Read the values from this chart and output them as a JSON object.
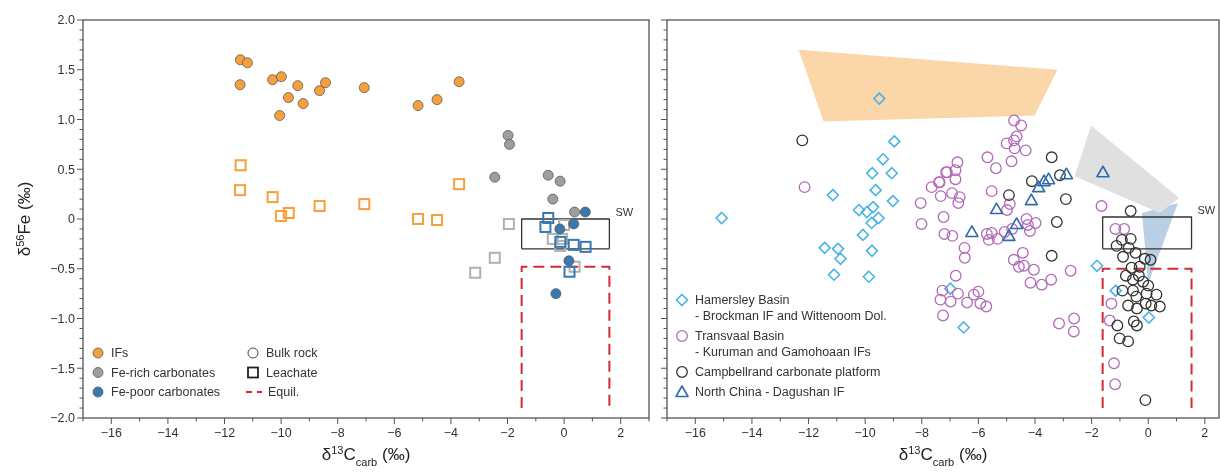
{
  "chart_data": [
    {
      "type": "scatter",
      "xlabel": "δ$^{13}$C$_{carb}$ (‰)",
      "ylabel": "δ$^{56}$Fe (‰)",
      "legend": "bottom left",
      "xlim": [
        -17,
        3
      ],
      "ylim": [
        -2,
        2
      ],
      "xticks": [
        {
          "value": -17,
          "label": null
        },
        {
          "value": -16,
          "label": "−16"
        },
        {
          "value": -15,
          "label": null
        },
        {
          "value": -14,
          "label": "−14"
        },
        {
          "value": -13,
          "label": null
        },
        {
          "value": -12,
          "label": "−12"
        },
        {
          "value": -11,
          "label": null
        },
        {
          "value": -10,
          "label": "−10"
        },
        {
          "value": -9,
          "label": null
        },
        {
          "value": -8,
          "label": "−8"
        },
        {
          "value": -7,
          "label": null
        },
        {
          "value": -6,
          "label": "−6"
        },
        {
          "value": -5,
          "label": null
        },
        {
          "value": -4,
          "label": "−4"
        },
        {
          "value": -3,
          "label": null
        },
        {
          "value": -2,
          "label": "−2"
        },
        {
          "value": -1,
          "label": null
        },
        {
          "value": 0,
          "label": "0"
        },
        {
          "value": 1,
          "label": null
        },
        {
          "value": 2,
          "label": "2"
        },
        {
          "value": 3,
          "label": null
        }
      ],
      "yticks": [
        {
          "value": 2,
          "label": "2.0"
        },
        {
          "value": 1.9,
          "label": null
        },
        {
          "value": 1.8,
          "label": null
        },
        {
          "value": 1.7,
          "label": null
        },
        {
          "value": 1.6,
          "label": null
        },
        {
          "value": 1.5,
          "label": "1.5"
        },
        {
          "value": 1.4,
          "label": null
        },
        {
          "value": 1.3,
          "label": null
        },
        {
          "value": 1.2,
          "label": null
        },
        {
          "value": 1.1,
          "label": null
        },
        {
          "value": 1,
          "label": "1.0"
        },
        {
          "value": 0.9,
          "label": null
        },
        {
          "value": 0.8,
          "label": null
        },
        {
          "value": 0.7,
          "label": null
        },
        {
          "value": 0.6,
          "label": null
        },
        {
          "value": 0.5,
          "label": "0.5"
        },
        {
          "value": 0.4,
          "label": null
        },
        {
          "value": 0.3,
          "label": null
        },
        {
          "value": 0.2,
          "label": null
        },
        {
          "value": 0.1,
          "label": null
        },
        {
          "value": 0,
          "label": "0"
        },
        {
          "value": -0.1,
          "label": null
        },
        {
          "value": -0.2,
          "label": null
        },
        {
          "value": -0.3,
          "label": null
        },
        {
          "value": -0.4,
          "label": null
        },
        {
          "value": -0.5,
          "label": "−0.5"
        },
        {
          "value": -0.6,
          "label": null
        },
        {
          "value": -0.7,
          "label": null
        },
        {
          "value": -0.8,
          "label": null
        },
        {
          "value": -0.9,
          "label": null
        },
        {
          "value": -1,
          "label": "−1.0"
        },
        {
          "value": -1.1,
          "label": null
        },
        {
          "value": -1.2,
          "label": null
        },
        {
          "value": -1.3,
          "label": null
        },
        {
          "value": -1.4,
          "label": null
        },
        {
          "value": -1.5,
          "label": "−1.5"
        },
        {
          "value": -1.6,
          "label": null
        },
        {
          "value": -1.7,
          "label": null
        },
        {
          "value": -1.8,
          "label": null
        },
        {
          "value": -1.9,
          "label": null
        },
        {
          "value": -2,
          "label": "−2.0"
        }
      ],
      "annotations": [
        "Bulk rock",
        "Leachate"
      ],
      "series": [
        {
          "type": "line",
          "name": "SW",
          "color": "#333333",
          "line_style": "solid",
          "x": [
            -1.5,
            -1.5,
            1.6,
            1.6
          ],
          "values": [
            -0.3,
            0,
            0,
            -0.3
          ]
        },
        {
          "type": "line",
          "color": "#333333",
          "line_style": "solid",
          "x": [
            -1.5,
            1.6
          ],
          "values": [
            -0.3,
            -0.3
          ]
        },
        {
          "type": "line",
          "name": "Equil.",
          "color": "#d42a36",
          "line_style": "dashed",
          "x": [
            -1.5,
            -1.5,
            1.6,
            1.6
          ],
          "values": [
            -1.9,
            -0.48,
            -0.48,
            -1.9
          ]
        },
        {
          "name": "IFs",
          "color": "#f5a03c",
          "marker": "circle",
          "x": [
            -11.44,
            -11.19,
            -11.45,
            -10.3,
            -9.99,
            -9.74,
            -9.41,
            -9.22,
            -10.05,
            -8.64,
            -8.43,
            -7.06,
            -5.16,
            -4.49,
            -3.71
          ],
          "values": [
            1.6,
            1.57,
            1.35,
            1.4,
            1.43,
            1.22,
            1.34,
            1.16,
            1.04,
            1.29,
            1.37,
            1.32,
            1.14,
            1.2,
            1.38
          ]
        },
        {
          "color": "#f5a03c",
          "marker": "square",
          "x": [
            -11.43,
            -11.45,
            -10.3,
            -10.0,
            -9.73,
            -8.64,
            -7.06,
            -5.16,
            -4.49,
            -3.71
          ],
          "values": [
            0.54,
            0.29,
            0.22,
            0.03,
            0.06,
            0.13,
            0.15,
            0.0,
            -0.01,
            0.35
          ]
        },
        {
          "name": "Fe-rich carbonates",
          "color": "#9e9e9e",
          "marker": "circle",
          "x": [
            -1.98,
            -1.93,
            -2.45,
            -0.56,
            -0.14,
            -0.4,
            0.37
          ],
          "values": [
            0.84,
            0.75,
            0.42,
            0.44,
            0.38,
            0.2,
            0.07
          ]
        },
        {
          "color": "#b0b0b0",
          "marker": "square",
          "x": [
            -1.95,
            -2.45,
            -3.14,
            0.0,
            -0.4,
            -0.07,
            -0.14,
            0.37
          ],
          "values": [
            -0.05,
            -0.39,
            -0.54,
            -0.06,
            -0.2,
            -0.2,
            -0.27,
            -0.48
          ]
        },
        {
          "name": "Fe-poor carbonates",
          "color": "#3a78b0",
          "marker": "circle",
          "x": [
            0.75,
            0.34,
            -0.15,
            0.17,
            -0.29
          ],
          "values": [
            0.07,
            -0.05,
            -0.1,
            -0.42,
            -0.75
          ]
        },
        {
          "color": "#3a78b0",
          "marker": "square",
          "x": [
            -0.56,
            -0.66,
            -0.13,
            0.34,
            0.76,
            0.19
          ],
          "values": [
            0.01,
            -0.08,
            -0.23,
            -0.26,
            -0.28,
            -0.53
          ]
        }
      ]
    },
    {
      "type": "scatter",
      "xlabel": "δ$^{13}$C$_{carb}$ (‰)",
      "legend": "bottom left",
      "tick_labels": "x",
      "xlim": [
        -17,
        2.5
      ],
      "ylim": [
        -2,
        2
      ],
      "yticks": [
        2,
        {
          "value": 1.9,
          "label": null
        },
        {
          "value": 1.8,
          "label": null
        },
        {
          "value": 1.7,
          "label": null
        },
        {
          "value": 1.6,
          "label": null
        },
        1.5,
        {
          "value": 1.4,
          "label": null
        },
        {
          "value": 1.3,
          "label": null
        },
        {
          "value": 1.2,
          "label": null
        },
        {
          "value": 1.1,
          "label": null
        },
        1,
        {
          "value": 0.9,
          "label": null
        },
        {
          "value": 0.8,
          "label": null
        },
        {
          "value": 0.7,
          "label": null
        },
        {
          "value": 0.6,
          "label": null
        },
        0.5,
        {
          "value": 0.4,
          "label": null
        },
        {
          "value": 0.3,
          "label": null
        },
        {
          "value": 0.2,
          "label": null
        },
        {
          "value": 0.1,
          "label": null
        },
        0,
        {
          "value": -0.1,
          "label": null
        },
        {
          "value": -0.2,
          "label": null
        },
        {
          "value": -0.3,
          "label": null
        },
        {
          "value": -0.4,
          "label": null
        },
        -0.5,
        {
          "value": -0.6,
          "label": null
        },
        {
          "value": -0.7,
          "label": null
        },
        {
          "value": -0.8,
          "label": null
        },
        {
          "value": -0.9,
          "label": null
        },
        -1,
        {
          "value": -1.1,
          "label": null
        },
        {
          "value": -1.2,
          "label": null
        },
        {
          "value": -1.3,
          "label": null
        },
        {
          "value": -1.4,
          "label": null
        },
        -1.5,
        {
          "value": -1.6,
          "label": null
        },
        {
          "value": -1.7,
          "label": null
        },
        {
          "value": -1.8,
          "label": null
        },
        {
          "value": -1.9,
          "label": null
        },
        -2
      ],
      "xticks": [
        {
          "value": -17,
          "label": null
        },
        {
          "value": -16,
          "label": "−16"
        },
        {
          "value": -15,
          "label": null
        },
        {
          "value": -14,
          "label": "−14"
        },
        {
          "value": -13,
          "label": null
        },
        {
          "value": -12,
          "label": "−12"
        },
        {
          "value": -11,
          "label": null
        },
        {
          "value": -10,
          "label": "−10"
        },
        {
          "value": -9,
          "label": null
        },
        {
          "value": -8,
          "label": "−8"
        },
        {
          "value": -7,
          "label": null
        },
        {
          "value": -6,
          "label": "−6"
        },
        {
          "value": -5,
          "label": null
        },
        {
          "value": -4,
          "label": "−4"
        },
        {
          "value": -3,
          "label": null
        },
        {
          "value": -2,
          "label": "−2"
        },
        {
          "value": -1,
          "label": null
        },
        {
          "value": 0,
          "label": "0"
        },
        {
          "value": 1,
          "label": null
        },
        {
          "value": 2,
          "label": "2"
        }
      ],
      "series": [
        {
          "type": "area",
          "color": "#fbd6a8",
          "x": [
            -12.35,
            -3.21,
            -4.01,
            -11.47
          ],
          "values": [
            1.7,
            1.5,
            1.04,
            0.98
          ]
        },
        {
          "type": "area",
          "color": "#b9d0e4",
          "x": [
            1.05,
            -0.22,
            0.0
          ],
          "values": [
            0.16,
            0.06,
            -0.65
          ]
        },
        {
          "type": "area",
          "color": "#e0e0e0",
          "x": [
            -2.02,
            1.09,
            0.41,
            -2.6
          ],
          "values": [
            0.94,
            0.21,
            0.06,
            0.43
          ]
        },
        {
          "type": "line",
          "name": "SW",
          "color": "#333333",
          "line_style": "solid",
          "x": [
            -1.61,
            -1.61,
            1.53,
            1.53
          ],
          "values": [
            -0.3,
            0.02,
            0.02,
            -0.3
          ]
        },
        {
          "type": "line",
          "color": "#333333",
          "line_style": "solid",
          "x": [
            -1.61,
            1.53
          ],
          "values": [
            -0.3,
            -0.3
          ]
        },
        {
          "type": "line",
          "color": "#d42a36",
          "line_style": "dashed",
          "x": [
            -1.61,
            -1.61,
            1.53,
            1.53
          ],
          "values": [
            -1.9,
            -0.5,
            -0.5,
            -1.9
          ]
        },
        {
          "name": "Hamersley Basin\n- Brockman IF and Wittenoom Dol.",
          "color": "#4ab4e6",
          "marker": "diamond",
          "x": [
            -15.07,
            -8.97,
            -9.37,
            -9.75,
            -9.06,
            -9.63,
            -11.14,
            -9.02,
            -10.22,
            -9.94,
            -9.72,
            -9.53,
            -9.77,
            -10.08,
            -11.43,
            -10.96,
            -10.87,
            -9.76,
            -11.1,
            -9.87,
            -9.5,
            -6.52,
            -6.99,
            -1.81,
            -1.15,
            0.02
          ],
          "values": [
            0.01,
            0.78,
            0.6,
            0.46,
            0.46,
            0.29,
            0.24,
            0.18,
            0.09,
            0.07,
            0.12,
            0.01,
            -0.04,
            -0.16,
            -0.29,
            -0.3,
            -0.4,
            -0.32,
            -0.56,
            -0.58,
            1.21,
            -1.09,
            -0.7,
            -0.47,
            -0.72,
            -0.99
          ]
        },
        {
          "name": "Transvaal Basin\n- Kuruman and Gamohoaan IFs",
          "color": "#b36ab8",
          "marker": "circle",
          "x": [
            -12.14,
            -8.04,
            -8.01,
            -7.65,
            -7.37,
            -7.33,
            -7.14,
            -7.23,
            -7.2,
            -7.27,
            -7.34,
            -7.25,
            -4.74,
            -4.49,
            -4.65,
            -4.74,
            -5.0,
            -4.72,
            -4.33,
            -4.83,
            -5.68,
            -5.38,
            -6.74,
            -7.11,
            -6.81,
            -6.81,
            -7.39,
            -6.93,
            -6.66,
            -6.71,
            -5.53,
            -4.89,
            -4.99,
            -6.92,
            -6.49,
            -6.48,
            -5.7,
            -5.53,
            -5.63,
            -5.32,
            -5.07,
            -4.81,
            -4.3,
            -4.25,
            -3.98,
            -4.18,
            -4.43,
            -4.75,
            -4.57,
            -4.39,
            -4.04,
            -4.16,
            -3.76,
            -3.43,
            -2.74,
            -1.65,
            -1.16,
            -0.85,
            -3.15,
            -2.62,
            -2.63,
            -1.3,
            -1.36,
            -1.21,
            -1.17,
            -6.8,
            -6.98,
            -6.72,
            -6.4,
            -6.16,
            -6.0,
            -5.93,
            -5.72
          ],
          "values": [
            0.32,
            0.16,
            -0.05,
            0.32,
            0.37,
            0.23,
            0.47,
            0.02,
            -0.15,
            -0.72,
            -0.81,
            -0.97,
            0.99,
            0.94,
            0.83,
            0.79,
            0.76,
            0.71,
            0.69,
            0.58,
            0.62,
            0.51,
            0.57,
            0.47,
            0.49,
            0.4,
            0.37,
            0.26,
            0.22,
            0.16,
            0.28,
            0.15,
            0.09,
            -0.17,
            -0.29,
            -0.39,
            -0.15,
            -0.14,
            -0.21,
            -0.2,
            -0.13,
            -0.1,
            0.0,
            -0.06,
            -0.04,
            -0.12,
            -0.34,
            -0.41,
            -0.48,
            -0.47,
            -0.51,
            -0.64,
            -0.66,
            -0.61,
            -0.52,
            0.13,
            -0.1,
            -0.1,
            -1.05,
            -1.0,
            -1.13,
            -0.85,
            -1.02,
            -1.45,
            -1.66,
            -0.57,
            -0.83,
            -0.75,
            -0.84,
            -0.76,
            -0.73,
            -0.85,
            -0.88
          ]
        },
        {
          "name": "Campbellrand carbonate platform",
          "color": "#333333",
          "marker": "circle",
          "x": [
            -12.22,
            -3.41,
            -3.12,
            -4.11,
            -4.92,
            -2.91,
            -3.23,
            -3.41,
            -0.62,
            -0.93,
            -0.62,
            -1.12,
            -0.69,
            -0.89,
            -0.45,
            -0.12,
            0.08,
            -0.59,
            -0.3,
            -0.79,
            -0.33,
            -0.54,
            -0.18,
            0.0,
            -0.91,
            -0.54,
            -0.42,
            -0.06,
            0.29,
            -0.71,
            -0.4,
            -0.09,
            0.11,
            0.41,
            -0.51,
            -0.4,
            -1.09,
            -1.01,
            -0.71,
            -0.1
          ],
          "values": [
            0.79,
            0.62,
            0.44,
            0.38,
            0.24,
            0.2,
            -0.03,
            -0.37,
            0.08,
            -0.21,
            -0.2,
            -0.27,
            -0.29,
            -0.38,
            -0.34,
            -0.4,
            -0.41,
            -0.49,
            -0.48,
            -0.57,
            -0.57,
            -0.61,
            -0.63,
            -0.67,
            -0.72,
            -0.72,
            -0.78,
            -0.75,
            -0.76,
            -0.87,
            -0.9,
            -0.85,
            -0.87,
            -0.88,
            -1.03,
            -1.07,
            -1.07,
            -1.2,
            -1.23,
            -1.82
          ]
        },
        {
          "name": "North China - Dagushan IF",
          "color": "#2f6aad",
          "marker": "triangle",
          "x": [
            -6.23,
            -5.36,
            -4.92,
            -4.65,
            -4.13,
            -3.87,
            -3.68,
            -3.52,
            -2.89,
            -1.6
          ],
          "values": [
            -0.13,
            0.1,
            -0.17,
            -0.05,
            0.19,
            0.32,
            0.38,
            0.4,
            0.45,
            0.47
          ]
        }
      ]
    }
  ]
}
